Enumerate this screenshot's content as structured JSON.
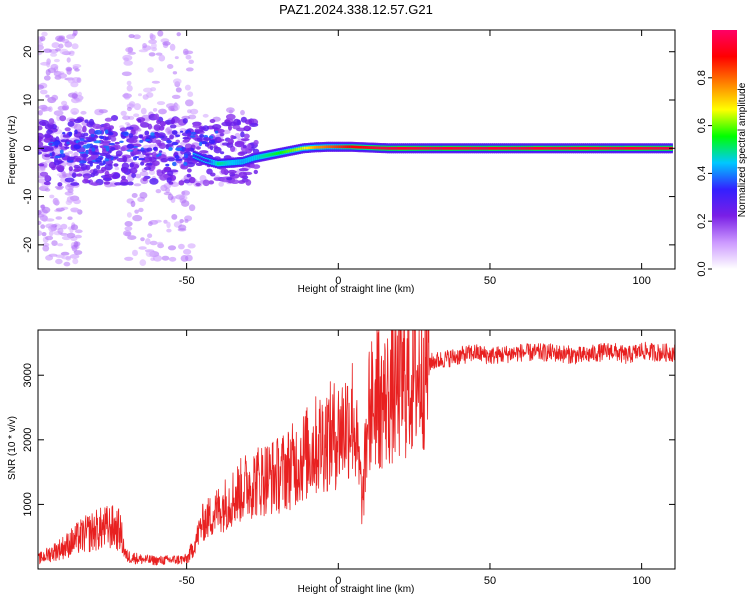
{
  "figure": {
    "title": "PAZ1.2024.338.12.57.G21"
  },
  "colors": {
    "snr_line": "#e82020",
    "colormap": [
      "#ffffff",
      "#cc99ff",
      "#7a1fe6",
      "#3320ff",
      "#00c8ff",
      "#00ff00",
      "#ffff00",
      "#ff8000",
      "#ff0000",
      "#ff0066"
    ]
  },
  "chart_data": [
    {
      "type": "heatmap",
      "title": "PAZ1.2024.338.12.57.G21",
      "xlabel": "Height of straight line (km)",
      "ylabel": "Frequency (Hz)",
      "xlim": [
        -99,
        111
      ],
      "ylim": [
        -25,
        24.5
      ],
      "xticks": [
        -50,
        0,
        50,
        100
      ],
      "xtick_labels": [
        "-50",
        "0",
        "50",
        "100"
      ],
      "yticks": [
        -20,
        -10,
        0,
        10,
        20
      ],
      "ytick_labels": [
        "-20",
        "-10",
        "0",
        "10",
        "20"
      ],
      "colorbar": {
        "label": "Normalized spectral amplitude",
        "range": [
          0,
          1
        ],
        "ticks": [
          0.0,
          0.2,
          0.4,
          0.6,
          0.8
        ],
        "tick_labels": [
          "0.0",
          "0.2",
          "0.4",
          "0.6",
          "0.8"
        ]
      },
      "ridge": {
        "x": [
          -48,
          -44,
          -40,
          -36,
          -32,
          -28,
          -24,
          -20,
          -16,
          -12,
          -8,
          -4,
          0,
          4,
          8,
          12,
          16,
          20,
          30,
          40,
          60,
          80,
          100,
          110
        ],
        "y": [
          -1.5,
          -2.5,
          -3.2,
          -3.0,
          -2.8,
          -2.0,
          -1.5,
          -1.0,
          -0.5,
          0.0,
          0.2,
          0.3,
          0.3,
          0.3,
          0.2,
          0.1,
          0.0,
          0.0,
          0.0,
          0.0,
          0.0,
          0.0,
          0.0,
          0.0
        ],
        "amplitude": [
          0.35,
          0.3,
          0.5,
          0.45,
          0.42,
          0.45,
          0.5,
          0.55,
          0.6,
          0.65,
          0.75,
          0.8,
          0.85,
          0.9,
          0.9,
          0.95,
          0.95,
          0.95,
          0.95,
          0.95,
          0.95,
          0.95,
          0.95,
          0.95
        ]
      },
      "grid": false
    },
    {
      "type": "line",
      "xlabel": "Height of straight line (km)",
      "ylabel": "SNR (10 * v/v)",
      "xlim": [
        -99,
        111
      ],
      "ylim": [
        0,
        3700
      ],
      "xticks": [
        -50,
        0,
        50,
        100
      ],
      "xtick_labels": [
        "-50",
        "0",
        "50",
        "100"
      ],
      "yticks": [
        1000,
        2000,
        3000
      ],
      "ytick_labels": [
        "1000",
        "2000",
        "3000"
      ],
      "series": [
        {
          "x": [
            -99,
            -90,
            -85,
            -80,
            -75,
            -72,
            -70,
            -65,
            -60,
            -55,
            -50,
            -48,
            -45,
            -40,
            -35,
            -30,
            -25,
            -20,
            -15,
            -10,
            -5,
            0,
            5,
            8,
            10,
            12,
            15,
            20,
            25,
            28,
            30,
            35,
            40,
            45,
            50,
            60,
            70,
            80,
            90,
            95,
            100,
            105,
            111
          ],
          "y": [
            150,
            350,
            500,
            600,
            650,
            600,
            200,
            150,
            130,
            140,
            150,
            300,
            700,
            900,
            1100,
            1300,
            1400,
            1450,
            1600,
            1800,
            2000,
            2100,
            2400,
            1000,
            2500,
            2600,
            2600,
            2800,
            2950,
            3100,
            3200,
            3250,
            3300,
            3350,
            3300,
            3350,
            3350,
            3300,
            3380,
            3300,
            3380,
            3350,
            3350
          ]
        }
      ],
      "grid": false
    }
  ]
}
